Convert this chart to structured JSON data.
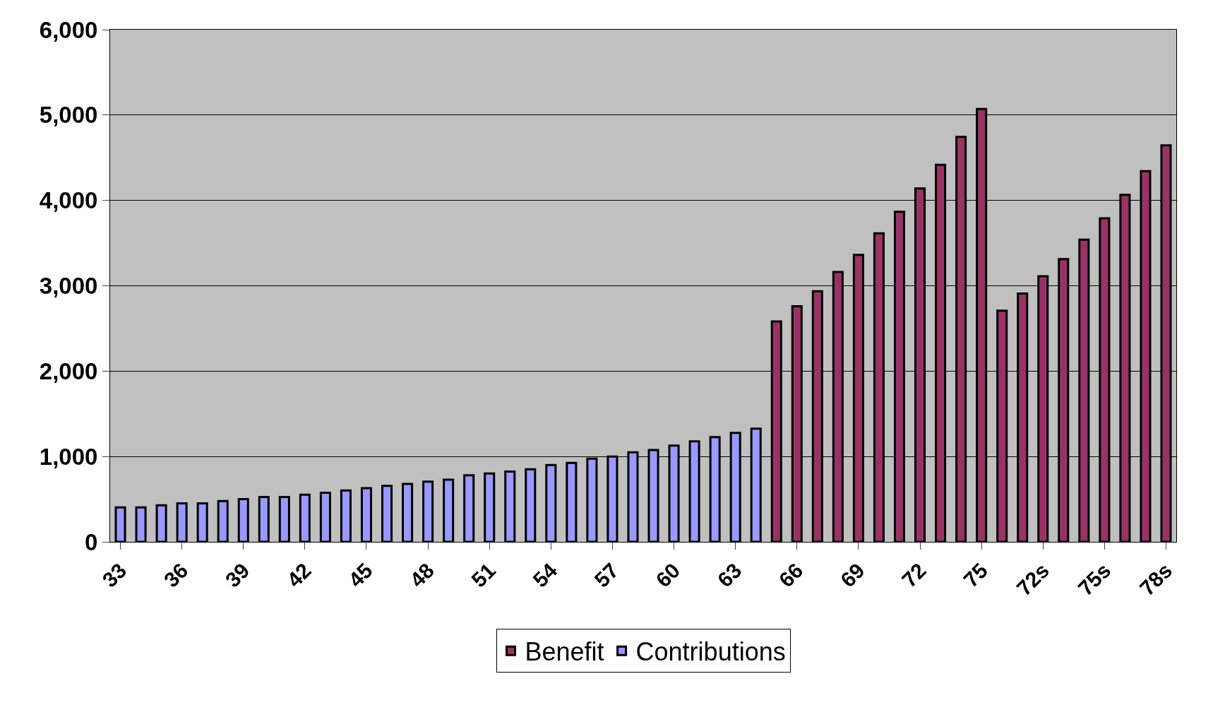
{
  "chart_data": {
    "type": "bar",
    "categories": [
      "33",
      null,
      null,
      "36",
      null,
      null,
      "39",
      null,
      null,
      "42",
      null,
      null,
      "45",
      null,
      null,
      "48",
      null,
      null,
      "51",
      null,
      null,
      "54",
      null,
      null,
      "57",
      null,
      null,
      "60",
      null,
      null,
      "63",
      null,
      null,
      "66",
      null,
      null,
      "69",
      null,
      null,
      "72",
      null,
      null,
      "75",
      null,
      null,
      "72s",
      null,
      null,
      "75s",
      null,
      null,
      "78s"
    ],
    "series": [
      {
        "name": "Benefit",
        "color": "#993366",
        "values": [
          null,
          null,
          null,
          null,
          null,
          null,
          null,
          null,
          null,
          null,
          null,
          null,
          null,
          null,
          null,
          null,
          null,
          null,
          null,
          null,
          null,
          null,
          null,
          null,
          null,
          null,
          null,
          null,
          null,
          null,
          null,
          null,
          2583,
          2759,
          2935,
          3162,
          3363,
          3615,
          3867,
          4140,
          4417,
          4745,
          5072,
          2709,
          2910,
          3112,
          3313,
          3540,
          3791,
          4065,
          4342,
          4644
        ]
      },
      {
        "name": "Contributions",
        "color": "#9999ff",
        "values": [
          404,
          404,
          428,
          451,
          451,
          478,
          501,
          525,
          525,
          552,
          575,
          602,
          628,
          655,
          678,
          705,
          729,
          779,
          801,
          823,
          851,
          901,
          925,
          975,
          1000,
          1050,
          1075,
          1127,
          1177,
          1227,
          1276,
          1326,
          null,
          null,
          null,
          null,
          null,
          null,
          null,
          null,
          null,
          null,
          null,
          null,
          null,
          null,
          null,
          null,
          null,
          null,
          null,
          null
        ]
      }
    ],
    "ylim": [
      0,
      6000
    ],
    "yticks": [
      {
        "value": 0,
        "label": "0"
      },
      {
        "value": 1000,
        "label": "1,000"
      },
      {
        "value": 2000,
        "label": "2,000"
      },
      {
        "value": 3000,
        "label": "3,000"
      },
      {
        "value": 4000,
        "label": "4,000"
      },
      {
        "value": 5000,
        "label": "5,000"
      },
      {
        "value": 6000,
        "label": "6,000"
      }
    ],
    "grid": "y",
    "legend": "bottom"
  }
}
